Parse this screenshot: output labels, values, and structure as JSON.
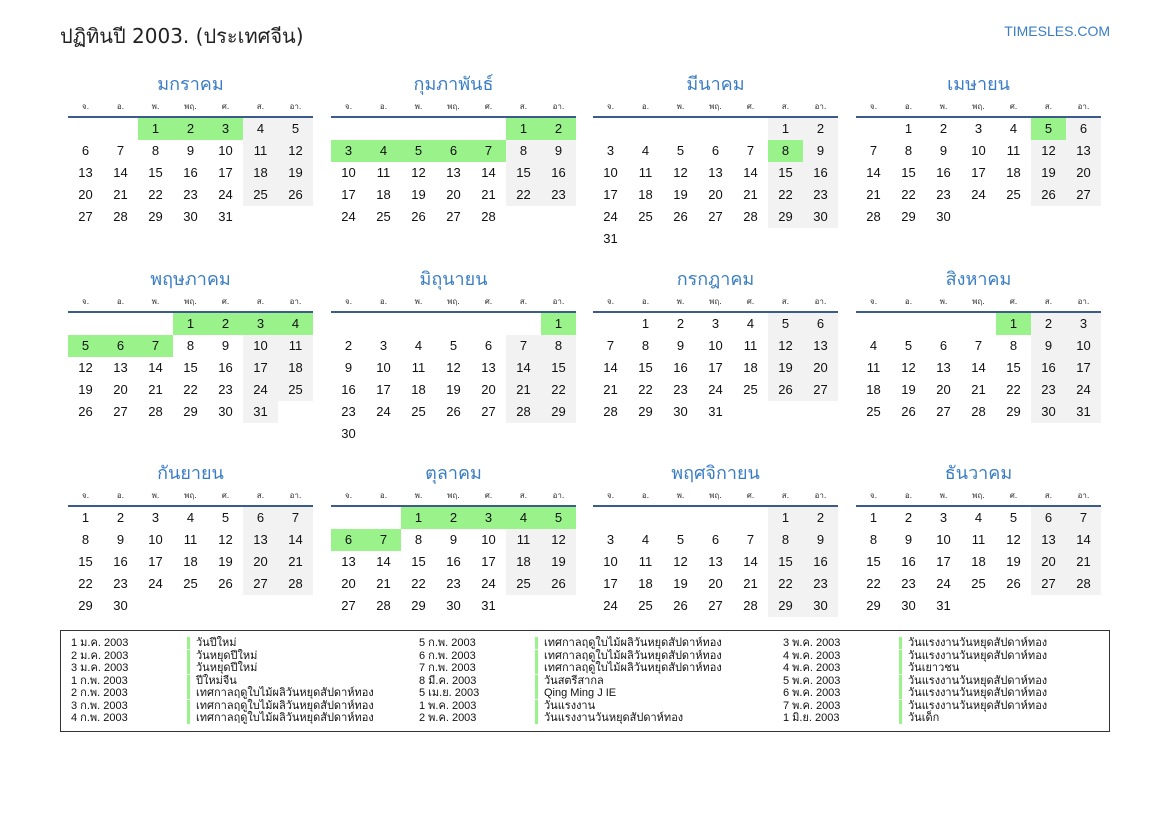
{
  "header": {
    "title": "ปฏิทินปี 2003. (ประเทศจีน)",
    "logo": "TIMESLES.COM"
  },
  "colors": {
    "accent": "#3a7dc4",
    "holiday": "#99f28a",
    "weekend": "#f2f2f2"
  },
  "weekdays": [
    "จ.",
    "อ.",
    "พ.",
    "พฤ.",
    "ศ.",
    "ส.",
    "อา."
  ],
  "months": [
    {
      "name": "มกราคม",
      "first_weekday": 2,
      "days": 31,
      "holidays": [
        1,
        2,
        3
      ]
    },
    {
      "name": "กุมภาพันธ์",
      "first_weekday": 5,
      "days": 28,
      "holidays": [
        1,
        2,
        3,
        4,
        5,
        6,
        7
      ]
    },
    {
      "name": "มีนาคม",
      "first_weekday": 5,
      "days": 31,
      "holidays": [
        8
      ]
    },
    {
      "name": "เมษายน",
      "first_weekday": 1,
      "days": 30,
      "holidays": [
        5
      ]
    },
    {
      "name": "พฤษภาคม",
      "first_weekday": 3,
      "days": 31,
      "holidays": [
        1,
        2,
        3,
        4,
        5,
        6,
        7
      ]
    },
    {
      "name": "มิถุนายน",
      "first_weekday": 6,
      "days": 30,
      "holidays": [
        1
      ]
    },
    {
      "name": "กรกฎาคม",
      "first_weekday": 1,
      "days": 31,
      "holidays": []
    },
    {
      "name": "สิงหาคม",
      "first_weekday": 4,
      "days": 31,
      "holidays": [
        1
      ]
    },
    {
      "name": "กันยายน",
      "first_weekday": 0,
      "days": 30,
      "holidays": []
    },
    {
      "name": "ตุลาคม",
      "first_weekday": 2,
      "days": 31,
      "holidays": [
        1,
        2,
        3,
        4,
        5,
        6,
        7
      ]
    },
    {
      "name": "พฤศจิกายน",
      "first_weekday": 5,
      "days": 30,
      "holidays": []
    },
    {
      "name": "ธันวาคม",
      "first_weekday": 0,
      "days": 31,
      "holidays": []
    }
  ],
  "legend": [
    [
      {
        "date": "1 ม.ค. 2003",
        "name": "วันปีใหม่"
      },
      {
        "date": "2 ม.ค. 2003",
        "name": "วันหยุดปีใหม่"
      },
      {
        "date": "3 ม.ค. 2003",
        "name": "วันหยุดปีใหม่"
      },
      {
        "date": "1 ก.พ. 2003",
        "name": "ปีใหม่จีน"
      },
      {
        "date": "2 ก.พ. 2003",
        "name": "เทศกาลฤดูใบไม้ผลิวันหยุดสัปดาห์ทอง"
      },
      {
        "date": "3 ก.พ. 2003",
        "name": "เทศกาลฤดูใบไม้ผลิวันหยุดสัปดาห์ทอง"
      },
      {
        "date": "4 ก.พ. 2003",
        "name": "เทศกาลฤดูใบไม้ผลิวันหยุดสัปดาห์ทอง"
      }
    ],
    [
      {
        "date": "5 ก.พ. 2003",
        "name": "เทศกาลฤดูใบไม้ผลิวันหยุดสัปดาห์ทอง"
      },
      {
        "date": "6 ก.พ. 2003",
        "name": "เทศกาลฤดูใบไม้ผลิวันหยุดสัปดาห์ทอง"
      },
      {
        "date": "7 ก.พ. 2003",
        "name": "เทศกาลฤดูใบไม้ผลิวันหยุดสัปดาห์ทอง"
      },
      {
        "date": "8 มี.ค. 2003",
        "name": "วันสตรีสากล"
      },
      {
        "date": "5 เม.ย. 2003",
        "name": "Qing Ming J IE"
      },
      {
        "date": "1 พ.ค. 2003",
        "name": "วันแรงงาน"
      },
      {
        "date": "2 พ.ค. 2003",
        "name": "วันแรงงานวันหยุดสัปดาห์ทอง"
      }
    ],
    [
      {
        "date": "3 พ.ค. 2003",
        "name": "วันแรงงานวันหยุดสัปดาห์ทอง"
      },
      {
        "date": "4 พ.ค. 2003",
        "name": "วันแรงงานวันหยุดสัปดาห์ทอง"
      },
      {
        "date": "4 พ.ค. 2003",
        "name": "วันเยาวชน"
      },
      {
        "date": "5 พ.ค. 2003",
        "name": "วันแรงงานวันหยุดสัปดาห์ทอง"
      },
      {
        "date": "6 พ.ค. 2003",
        "name": "วันแรงงานวันหยุดสัปดาห์ทอง"
      },
      {
        "date": "7 พ.ค. 2003",
        "name": "วันแรงงานวันหยุดสัปดาห์ทอง"
      },
      {
        "date": "1 มิ.ย. 2003",
        "name": "วันเด็ก"
      }
    ]
  ]
}
